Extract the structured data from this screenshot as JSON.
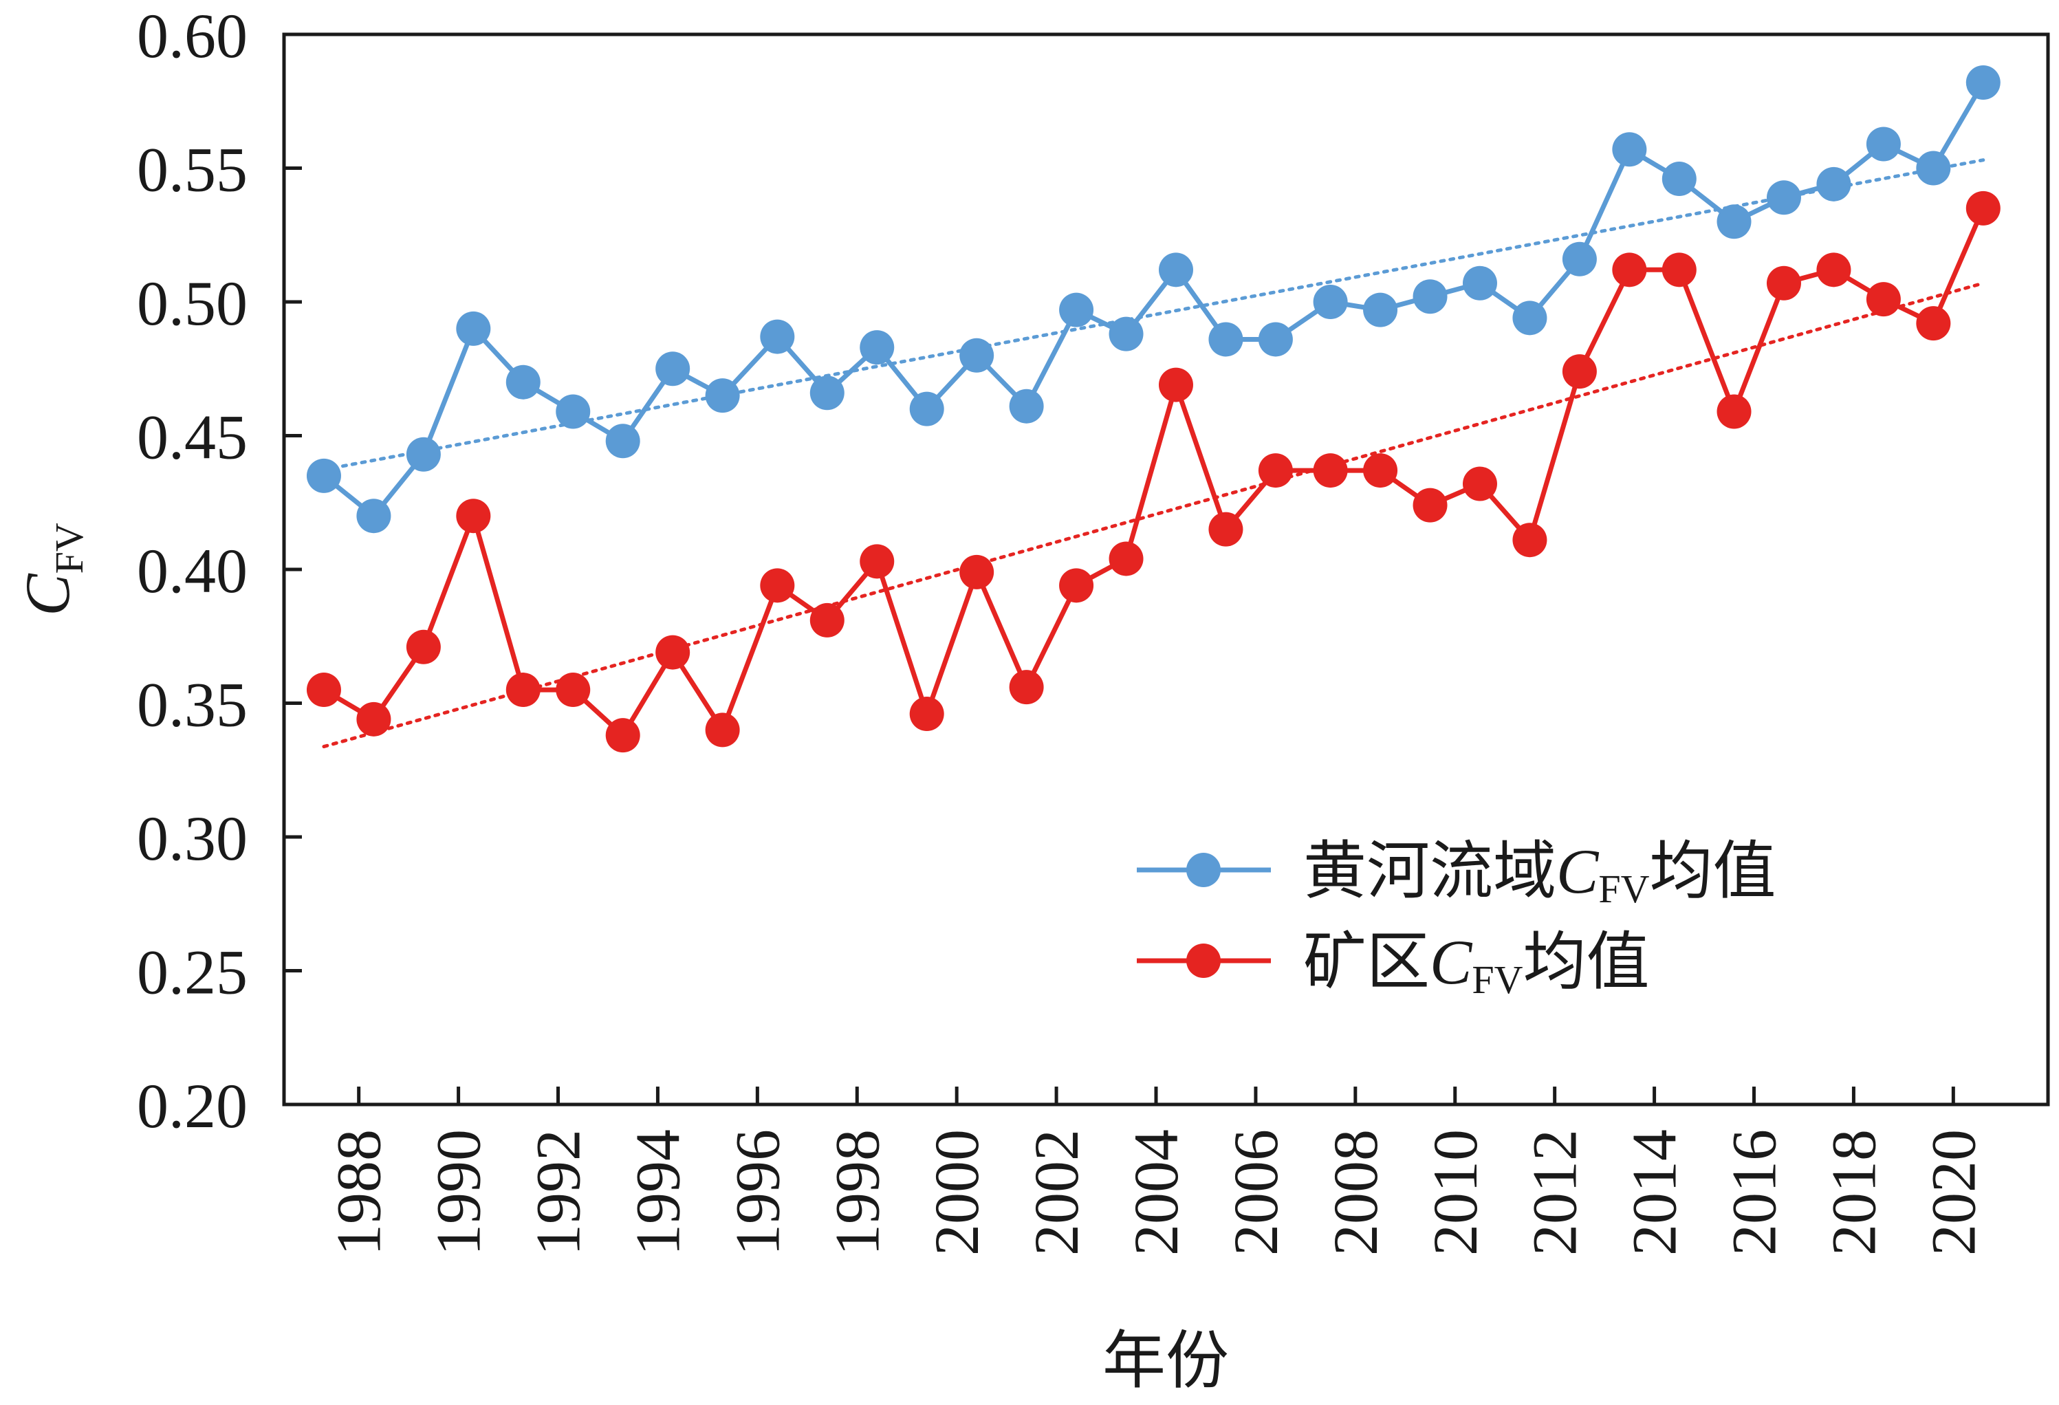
{
  "chart_data": {
    "type": "line",
    "xlabel": "年份",
    "ylabel": {
      "main": "C",
      "sub": "FV"
    },
    "ylim": [
      0.2,
      0.6
    ],
    "yticks": [
      "0.20",
      "0.25",
      "0.30",
      "0.35",
      "0.40",
      "0.45",
      "0.50",
      "0.55",
      "0.60"
    ],
    "xlim": [
      1986.5,
      2021.9
    ],
    "xticks": [
      "1988",
      "1990",
      "1992",
      "1994",
      "1996",
      "1998",
      "2000",
      "2002",
      "2004",
      "2006",
      "2008",
      "2010",
      "2012",
      "2014",
      "2016",
      "2018",
      "2020"
    ],
    "grid": false,
    "legend_position": "lower-right",
    "x": [
      1987.3,
      1988.3,
      1989.3,
      1990.3,
      1991.3,
      1992.3,
      1993.3,
      1994.3,
      1995.3,
      1996.4,
      1997.4,
      1998.4,
      1999.4,
      2000.4,
      2001.4,
      2002.4,
      2003.4,
      2004.4,
      2005.4,
      2006.4,
      2007.5,
      2008.5,
      2009.5,
      2010.5,
      2011.5,
      2012.5,
      2013.5,
      2014.5,
      2015.6,
      2016.6,
      2017.6,
      2018.6,
      2019.6,
      2020.6
    ],
    "series": [
      {
        "legend": {
          "prefix": "黄河流域",
          "main": "C",
          "sub": "FV",
          "suffix": "均值"
        },
        "color": "#5b9bd5",
        "trendline": "dotted",
        "values": [
          0.435,
          0.42,
          0.443,
          0.49,
          0.47,
          0.459,
          0.448,
          0.475,
          0.465,
          0.487,
          0.466,
          0.483,
          0.46,
          0.48,
          0.461,
          0.497,
          0.488,
          0.512,
          0.486,
          0.486,
          0.5,
          0.497,
          0.502,
          0.507,
          0.494,
          0.516,
          0.557,
          0.546,
          0.53,
          0.539,
          0.544,
          0.559,
          0.55,
          0.582
        ]
      },
      {
        "legend": {
          "prefix": "矿区",
          "main": "C",
          "sub": "FV",
          "suffix": "均值"
        },
        "color": "#e52421",
        "trendline": "dotted",
        "values": [
          0.355,
          0.344,
          0.371,
          0.42,
          0.355,
          0.355,
          0.338,
          0.369,
          0.34,
          0.394,
          0.381,
          0.403,
          0.346,
          0.399,
          0.356,
          0.394,
          0.404,
          0.469,
          0.415,
          0.437,
          0.437,
          0.437,
          0.424,
          0.432,
          0.411,
          0.474,
          0.512,
          0.512,
          0.459,
          0.507,
          0.512,
          0.501,
          0.492,
          0.535
        ]
      }
    ]
  }
}
